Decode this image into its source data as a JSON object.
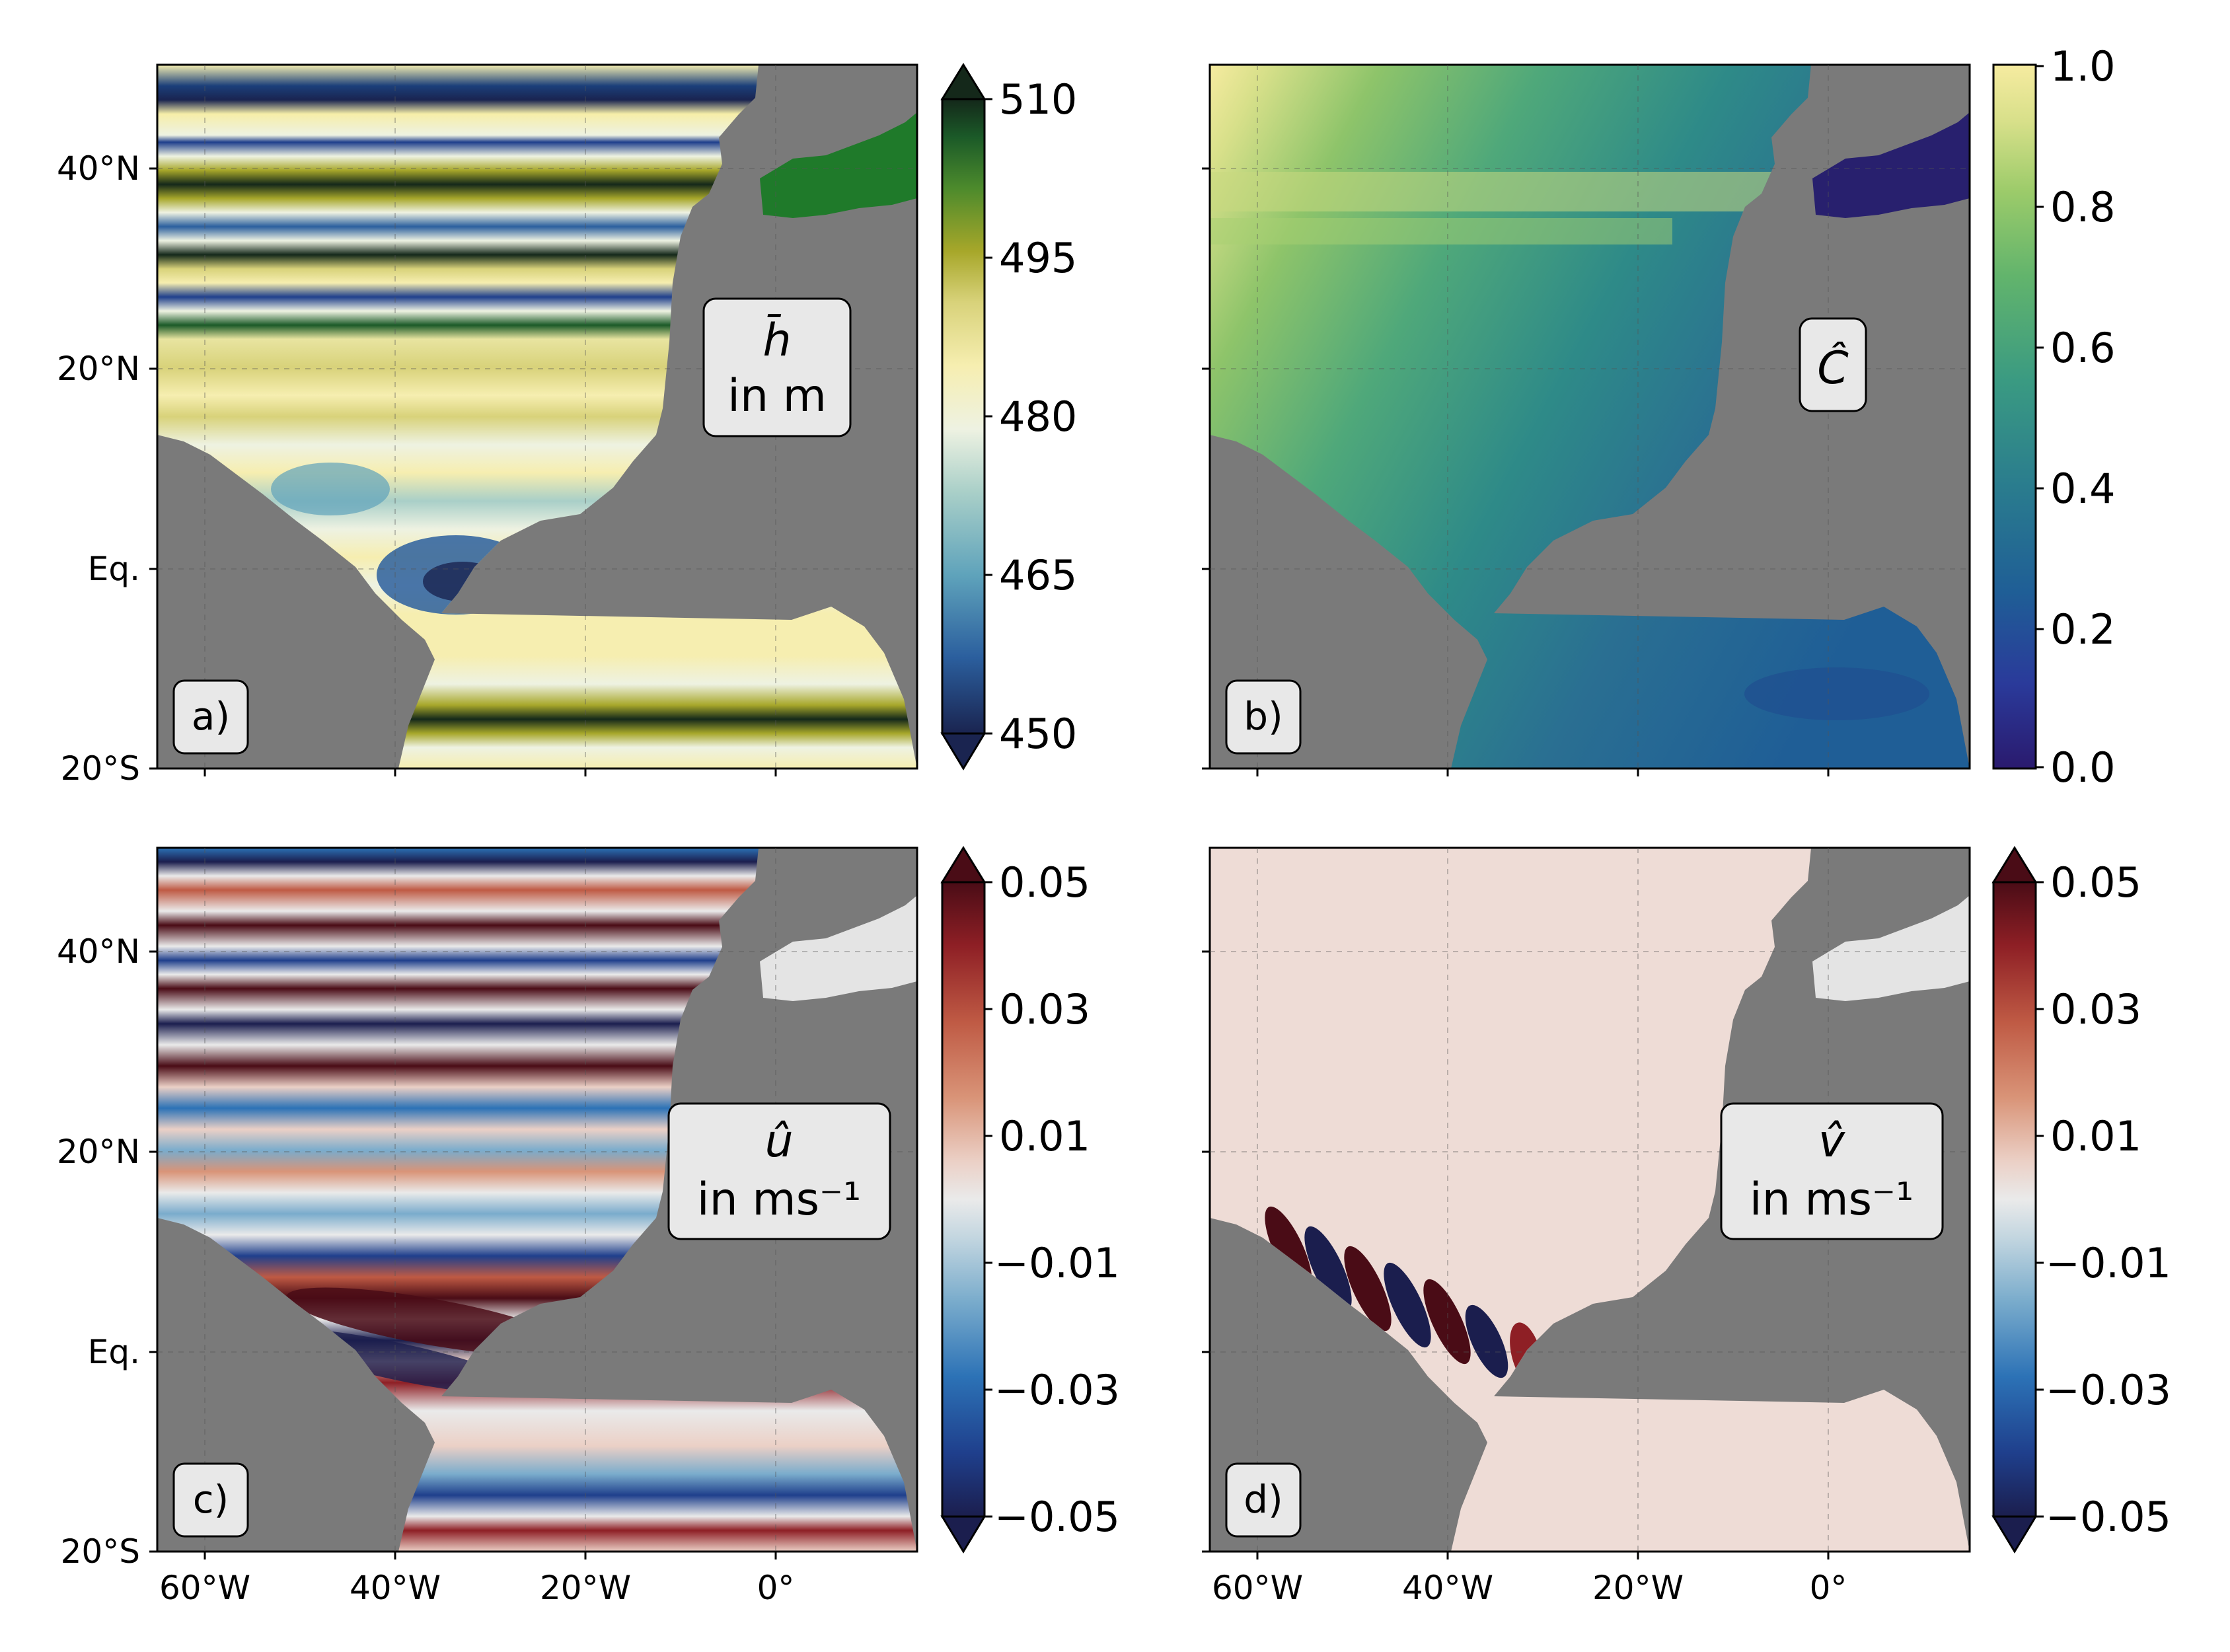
{
  "figure": {
    "lat_ticks": [
      "40°N",
      "20°N",
      "Eq.",
      "20°S"
    ],
    "lon_ticks": [
      "60°W",
      "40°W",
      "20°W",
      "0°"
    ],
    "land_color": "#7a7a7a"
  },
  "panels": [
    {
      "id": "a",
      "label": "a)",
      "field_line1": "h̄",
      "field_line2": "in m",
      "colormap": "gist_earth-like",
      "colorbar": {
        "min": 450,
        "max": 510,
        "ticks": [
          "510",
          "495",
          "480",
          "465",
          "450"
        ],
        "extend": "both"
      },
      "med_color": "#1f7a2a"
    },
    {
      "id": "b",
      "label": "b)",
      "field_line1": "Ĉ",
      "field_line2": "",
      "colormap": "haline-like",
      "colorbar": {
        "min": 0.0,
        "max": 1.0,
        "ticks": [
          "1.0",
          "0.8",
          "0.6",
          "0.4",
          "0.2",
          "0.0"
        ],
        "extend": "neither"
      },
      "med_color": "#28206e"
    },
    {
      "id": "c",
      "label": "c)",
      "field_line1": "û",
      "field_line2": "in ms⁻¹",
      "colormap": "RdBu_r",
      "colorbar": {
        "min": -0.05,
        "max": 0.05,
        "ticks": [
          "0.05",
          "0.03",
          "0.01",
          "−0.01",
          "−0.03",
          "−0.05"
        ],
        "extend": "both"
      },
      "med_color": "#e4e4e4"
    },
    {
      "id": "d",
      "label": "d)",
      "field_line1": "v̂",
      "field_line2": "in ms⁻¹",
      "colormap": "RdBu_r",
      "colorbar": {
        "min": -0.05,
        "max": 0.05,
        "ticks": [
          "0.05",
          "0.03",
          "0.01",
          "−0.01",
          "−0.03",
          "−0.05"
        ],
        "extend": "both"
      },
      "med_color": "#e4e4e4"
    }
  ]
}
